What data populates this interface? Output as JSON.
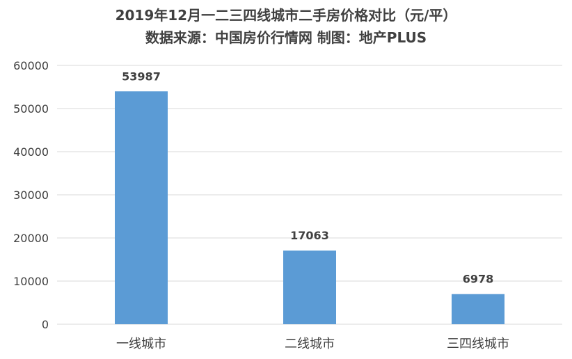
{
  "chart_data": {
    "type": "bar",
    "title": "2019年12月一二三四线城市二手房价格对比（元/平）",
    "subtitle": "数据来源：中国房价行情网 制图：地产PLUS",
    "categories": [
      "一线城市",
      "二线城市",
      "三四线城市"
    ],
    "values": [
      53987,
      17063,
      6978
    ],
    "data_labels": [
      "53987",
      "17063",
      "6978"
    ],
    "ylim": [
      0,
      60000
    ],
    "yticks": [
      0,
      10000,
      20000,
      30000,
      40000,
      50000,
      60000
    ],
    "ytick_labels": [
      "0",
      "10000",
      "20000",
      "30000",
      "40000",
      "50000",
      "60000"
    ],
    "xlabel": "",
    "ylabel": "",
    "grid": true,
    "legend": "none",
    "colors": {
      "bar": "#5B9BD5",
      "grid": "#D9D9D9",
      "text": "#404040"
    }
  }
}
